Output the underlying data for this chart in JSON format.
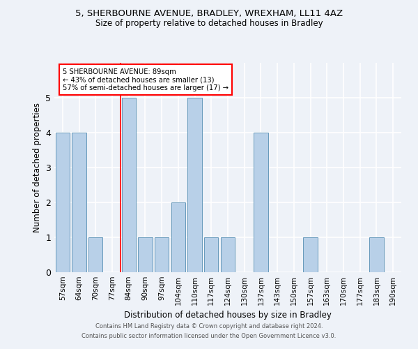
{
  "title1": "5, SHERBOURNE AVENUE, BRADLEY, WREXHAM, LL11 4AZ",
  "title2": "Size of property relative to detached houses in Bradley",
  "xlabel": "Distribution of detached houses by size in Bradley",
  "ylabel": "Number of detached properties",
  "categories": [
    "57sqm",
    "64sqm",
    "70sqm",
    "77sqm",
    "84sqm",
    "90sqm",
    "97sqm",
    "104sqm",
    "110sqm",
    "117sqm",
    "124sqm",
    "130sqm",
    "137sqm",
    "143sqm",
    "150sqm",
    "157sqm",
    "163sqm",
    "170sqm",
    "177sqm",
    "183sqm",
    "190sqm"
  ],
  "values": [
    4,
    4,
    1,
    0,
    5,
    1,
    1,
    2,
    5,
    1,
    1,
    0,
    4,
    0,
    0,
    1,
    0,
    0,
    0,
    1,
    0
  ],
  "bar_color": "#b8d0e8",
  "bar_edge_color": "#6699bb",
  "red_line_index": 4,
  "ylim": [
    0,
    6
  ],
  "yticks": [
    0,
    1,
    2,
    3,
    4,
    5
  ],
  "annotation_line1": "5 SHERBOURNE AVENUE: 89sqm",
  "annotation_line2": "← 43% of detached houses are smaller (13)",
  "annotation_line3": "57% of semi-detached houses are larger (17) →",
  "footer1": "Contains HM Land Registry data © Crown copyright and database right 2024.",
  "footer2": "Contains public sector information licensed under the Open Government Licence v3.0.",
  "background_color": "#eef2f8",
  "grid_color": "#ffffff"
}
